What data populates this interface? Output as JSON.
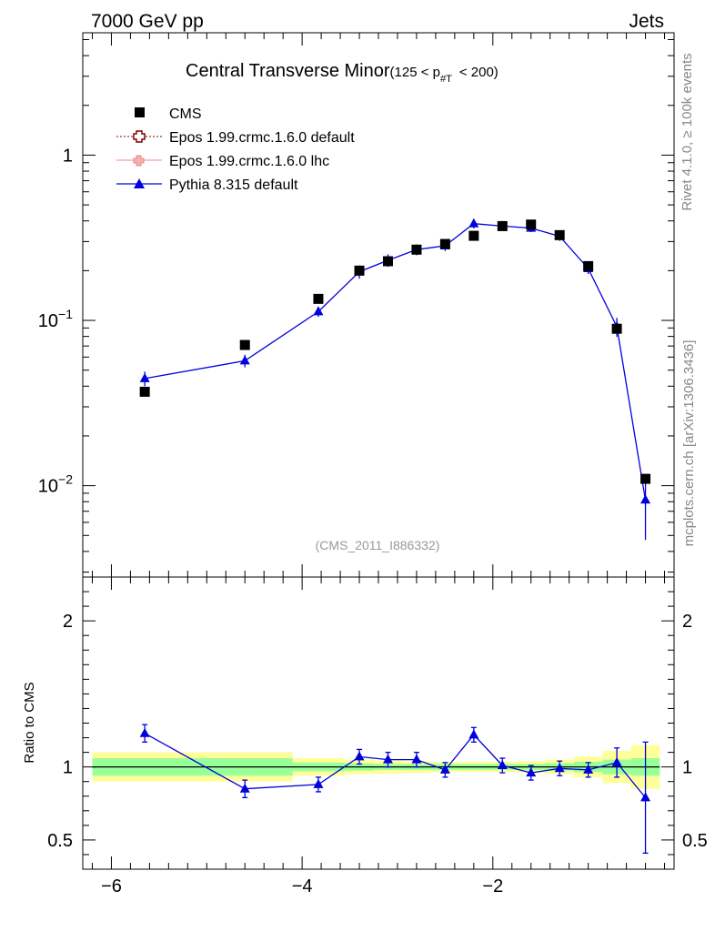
{
  "header": {
    "left": "7000 GeV pp",
    "right": "Jets"
  },
  "side_labels": {
    "rivet": "Rivet 4.1.0, ≥ 100k events",
    "mcplots": "mcplots.cern.ch [arXiv:1306.3436]"
  },
  "chart_data": {
    "type": "scatter",
    "title": "Central Transverse Minor",
    "title_suffix": "(125 < p",
    "title_sub": "#T",
    "title_end": "< 200)",
    "analysis_id": "(CMS_2011_I886332)",
    "xlim": [
      -6.3,
      -0.1
    ],
    "x_ticks": [
      -6,
      -4,
      -2
    ],
    "x_tick_labels": [
      "−6",
      "−4",
      "−2"
    ],
    "main": {
      "yscale": "log",
      "ylim": [
        0.0028,
        5.5
      ],
      "y_tick_labels": [
        {
          "value": 1,
          "base": "1",
          "exp": ""
        },
        {
          "value": 0.1,
          "base": "10",
          "exp": "−1"
        },
        {
          "value": 0.01,
          "base": "10",
          "exp": "−2"
        }
      ]
    },
    "ratio": {
      "ylabel": "Ratio to CMS",
      "ylim": [
        0.3,
        2.3
      ],
      "y_tick_labels": [
        {
          "value": 2,
          "label": "2"
        },
        {
          "value": 1,
          "label": "1"
        },
        {
          "value": 0.5,
          "label": "0.5"
        }
      ]
    },
    "legend": [
      {
        "name": "CMS",
        "marker": "square",
        "color": "#000000"
      },
      {
        "name": "Epos 1.99.crmc.1.6.0 default",
        "marker": "open-cross",
        "color": "#7f0000"
      },
      {
        "name": "Epos 1.99.crmc.1.6.0 lhc",
        "marker": "cross",
        "color": "#ee8888"
      },
      {
        "name": "Pythia 8.315 default",
        "marker": "triangle",
        "color": "#0000dd"
      }
    ],
    "cms": {
      "x": [
        -5.65,
        -4.6,
        -3.83,
        -3.4,
        -3.1,
        -2.8,
        -2.5,
        -2.2,
        -1.9,
        -1.6,
        -1.3,
        -1.0,
        -0.7,
        -0.4
      ],
      "y": [
        0.037,
        0.071,
        0.135,
        0.2,
        0.228,
        0.268,
        0.29,
        0.325,
        0.372,
        0.38,
        0.328,
        0.213,
        0.089,
        0.011
      ],
      "bin_edges": [
        -6.2,
        -5.1,
        -4.1,
        -3.55,
        -3.25,
        -2.95,
        -2.65,
        -2.35,
        -2.05,
        -1.75,
        -1.45,
        -1.15,
        -0.85,
        -0.55,
        -0.25
      ],
      "band_inner": [
        0.06,
        0.06,
        0.03,
        0.025,
        0.02,
        0.02,
        0.02,
        0.02,
        0.02,
        0.02,
        0.025,
        0.035,
        0.05,
        0.06
      ],
      "band_outer": [
        0.1,
        0.1,
        0.06,
        0.05,
        0.045,
        0.04,
        0.035,
        0.035,
        0.035,
        0.04,
        0.05,
        0.07,
        0.11,
        0.15
      ]
    },
    "pythia": {
      "name": "Pythia 8.315 default",
      "x": [
        -5.65,
        -4.6,
        -3.83,
        -3.4,
        -3.1,
        -2.8,
        -2.5,
        -2.2,
        -1.9,
        -1.6,
        -1.3,
        -1.0,
        -0.7,
        -0.4
      ],
      "y": [
        0.0445,
        0.057,
        0.113,
        0.197,
        0.231,
        0.268,
        0.283,
        0.385,
        0.372,
        0.362,
        0.323,
        0.206,
        0.0915,
        0.0082
      ],
      "err": [
        0.0045,
        0.005,
        0.008,
        0.018,
        0.02,
        0.02,
        0.02,
        0.025,
        0.02,
        0.02,
        0.02,
        0.015,
        0.012,
        0.0035
      ],
      "ratio": [
        1.23,
        0.85,
        0.88,
        1.07,
        1.05,
        1.05,
        0.98,
        1.22,
        1.01,
        0.96,
        0.99,
        0.98,
        1.03,
        0.79
      ],
      "ratio_err": [
        0.06,
        0.06,
        0.05,
        0.05,
        0.05,
        0.05,
        0.05,
        0.05,
        0.05,
        0.05,
        0.05,
        0.05,
        0.1,
        0.38
      ]
    }
  }
}
